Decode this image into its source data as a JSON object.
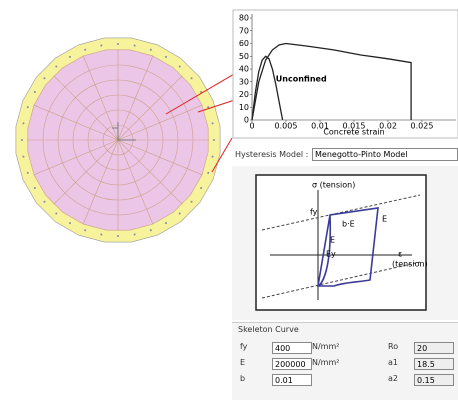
{
  "chart_data": {
    "type": "line",
    "x_label": "Concrete strain",
    "annotation": "Unconfined",
    "xlim": [
      0,
      0.03
    ],
    "xticks": [
      0,
      0.005,
      0.01,
      0.015,
      0.02,
      0.025
    ],
    "ylim": [
      0,
      80
    ],
    "yticks": [
      0,
      10,
      20,
      30,
      40,
      50,
      60,
      70,
      80
    ],
    "series": [
      {
        "color": "#222222",
        "x": [
          0,
          0.001,
          0.002,
          0.003,
          0.004,
          0.005,
          0.008,
          0.012,
          0.016,
          0.02,
          0.0234,
          0.0234
        ],
        "values": [
          0,
          30,
          47,
          55,
          59,
          60,
          58,
          55,
          51,
          48,
          45,
          0
        ]
      },
      {
        "name": "Unconfined",
        "color": "#222222",
        "x": [
          0,
          0.0005,
          0.001,
          0.0015,
          0.002,
          0.0025,
          0.003,
          0.0035,
          0.004,
          0.0045
        ],
        "values": [
          0,
          22,
          38,
          47,
          50,
          48,
          40,
          28,
          14,
          0
        ]
      }
    ]
  },
  "panel": {
    "hysteresis_label": "Hysteresis Model :",
    "hysteresis_model": "Menegotto-Pinto Model",
    "diagram": {
      "sigma": "σ (tension)",
      "epsilon": "ε",
      "eps_note": "(tension)",
      "fy_top": "fy",
      "bE": "b·E",
      "E_right": "E",
      "E_mid": "E",
      "fy_bottom": "Ey"
    },
    "skeleton": {
      "title": "Skeleton Curve",
      "rows": [
        [
          "fy",
          "400",
          "N/mm²",
          "Ro",
          "20"
        ],
        [
          "E",
          "200000",
          "N/mm²",
          "a1",
          "18.5"
        ],
        [
          "b",
          "0.01",
          "",
          "a2",
          "0.15"
        ]
      ]
    }
  }
}
